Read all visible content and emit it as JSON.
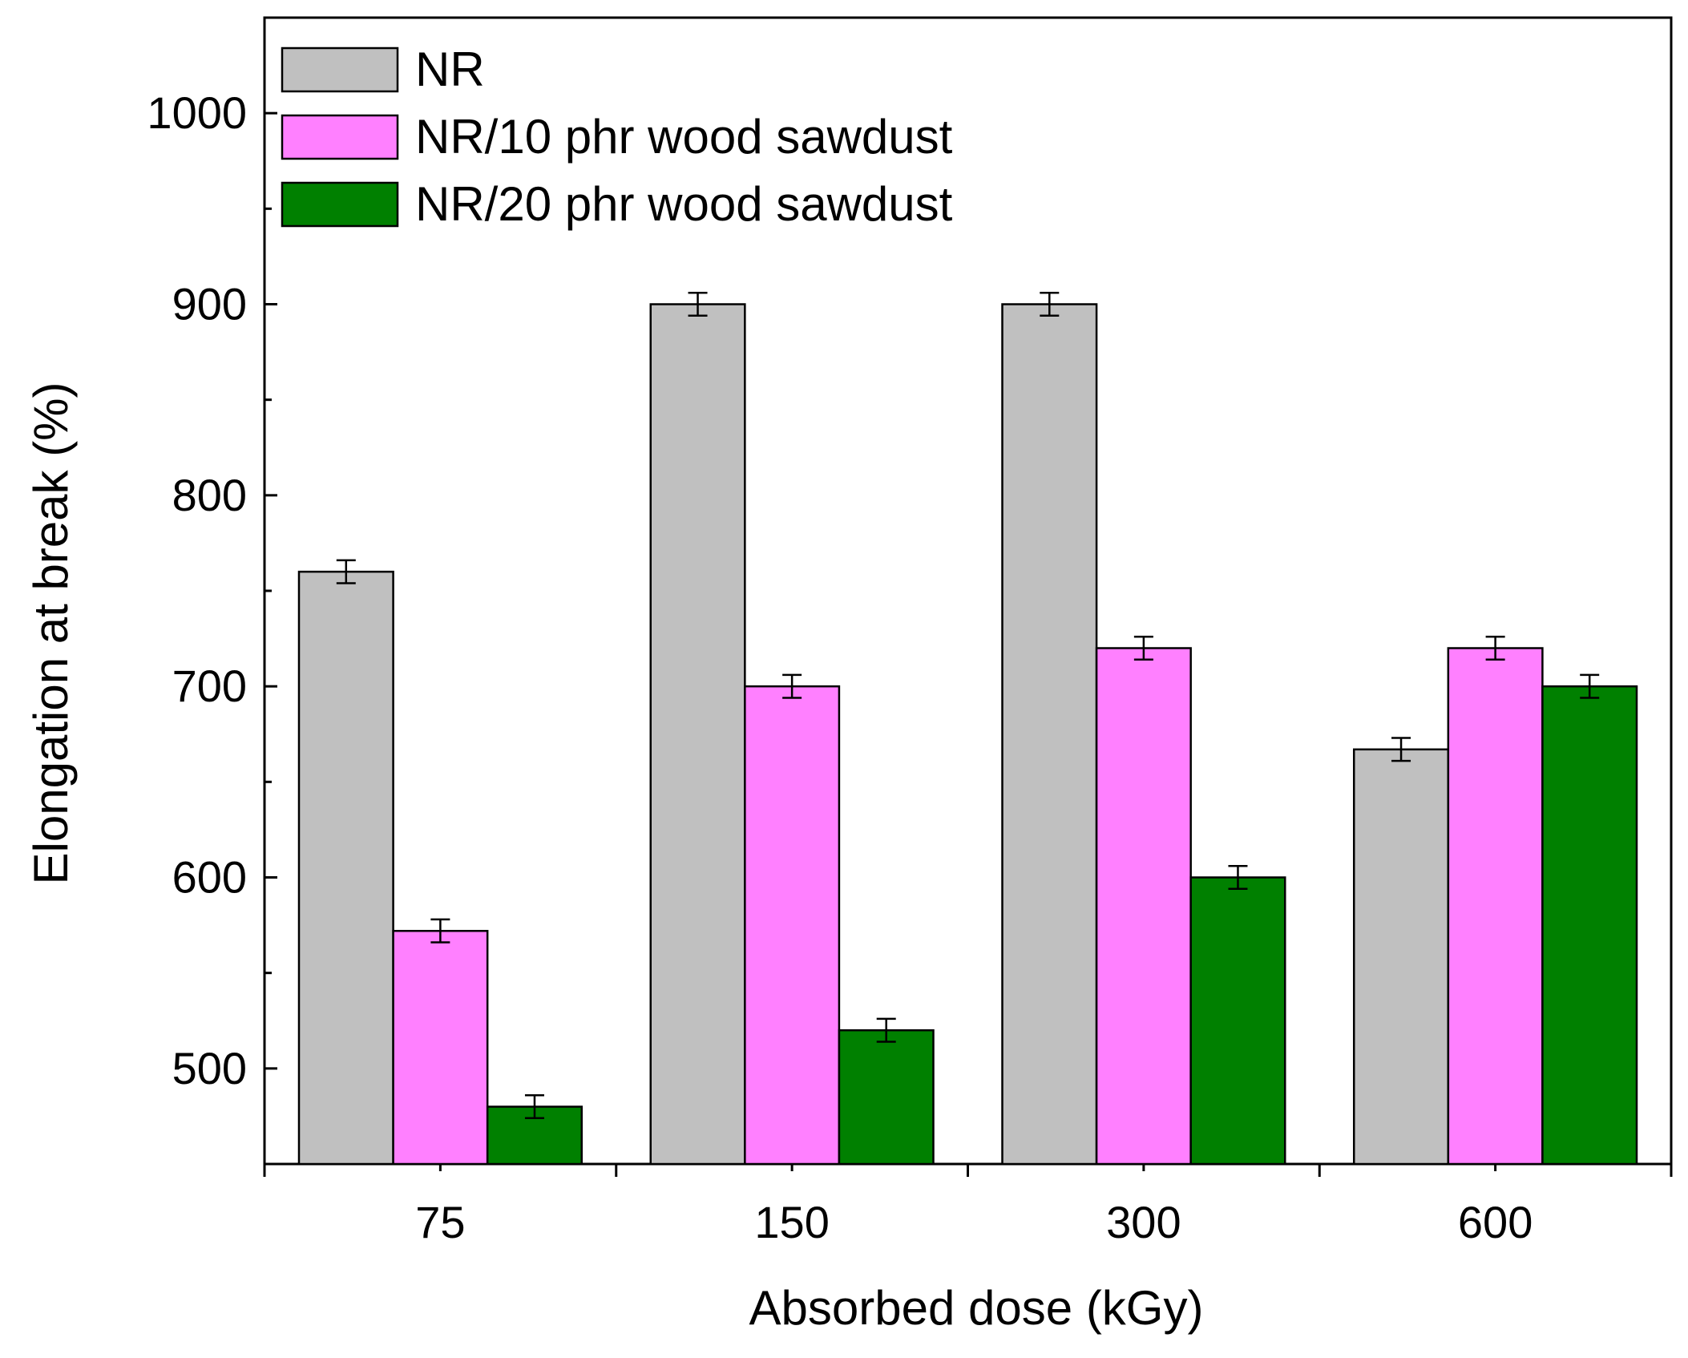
{
  "chart_data": {
    "type": "bar",
    "xlabel": "Absorbed dose (kGy)",
    "ylabel": "Elongation at break (%)",
    "categories": [
      "75",
      "150",
      "300",
      "600"
    ],
    "ylim": [
      450,
      1050
    ],
    "yticks": [
      500,
      600,
      700,
      800,
      900,
      1000
    ],
    "ytick_labels": [
      "500",
      "600",
      "700",
      "800",
      "900",
      "1000"
    ],
    "grid": false,
    "legend_position": "top-left",
    "series": [
      {
        "name": "NR",
        "color": "#c0c0c0",
        "values": [
          760,
          900,
          900,
          667
        ],
        "errors": [
          6,
          6,
          6,
          6
        ]
      },
      {
        "name": "NR/10 phr wood sawdust",
        "color": "#ff80ff",
        "values": [
          572,
          700,
          720,
          720
        ],
        "errors": [
          6,
          6,
          6,
          6
        ]
      },
      {
        "name": "NR/20 phr wood sawdust",
        "color": "#008000",
        "values": [
          480,
          520,
          600,
          700
        ],
        "errors": [
          6,
          6,
          6,
          6
        ]
      }
    ]
  }
}
